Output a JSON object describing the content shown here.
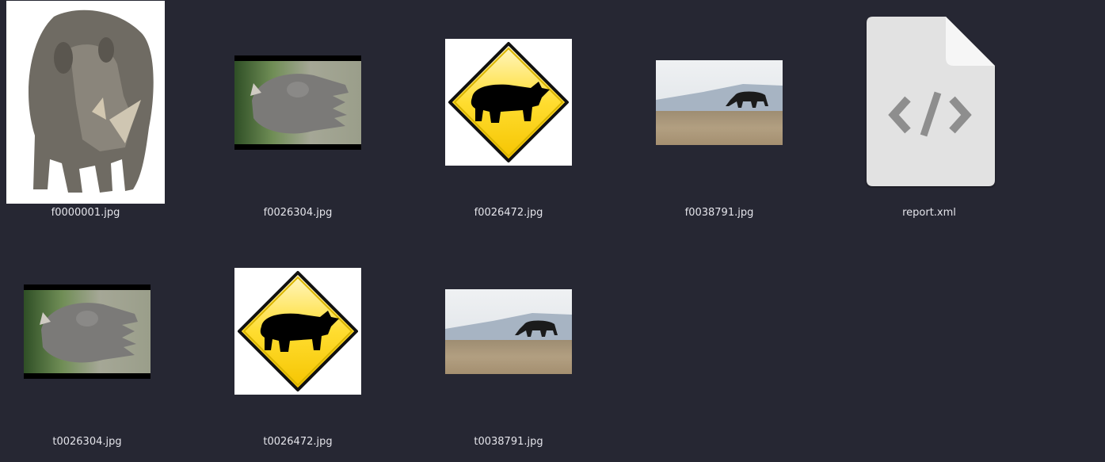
{
  "files": [
    {
      "name": "f0000001.jpg",
      "kind": "image",
      "thumb": "rhino-front"
    },
    {
      "name": "f0026304.jpg",
      "kind": "image",
      "thumb": "rhino-grass-rotated"
    },
    {
      "name": "f0026472.jpg",
      "kind": "image",
      "thumb": "rhino-warning-sign"
    },
    {
      "name": "f0038791.jpg",
      "kind": "image",
      "thumb": "rhino-silhouette-plain"
    },
    {
      "name": "report.xml",
      "kind": "file",
      "thumb": "code-file-icon"
    },
    {
      "name": "t0026304.jpg",
      "kind": "image",
      "thumb": "rhino-grass-rotated"
    },
    {
      "name": "t0026472.jpg",
      "kind": "image",
      "thumb": "rhino-warning-sign"
    },
    {
      "name": "t0038791.jpg",
      "kind": "image",
      "thumb": "rhino-silhouette-plain"
    }
  ],
  "colors": {
    "background": "#262733",
    "label_text": "#e4e4ea",
    "sign_yellow": "#ffd21a",
    "file_icon": "#e2e2e2"
  }
}
